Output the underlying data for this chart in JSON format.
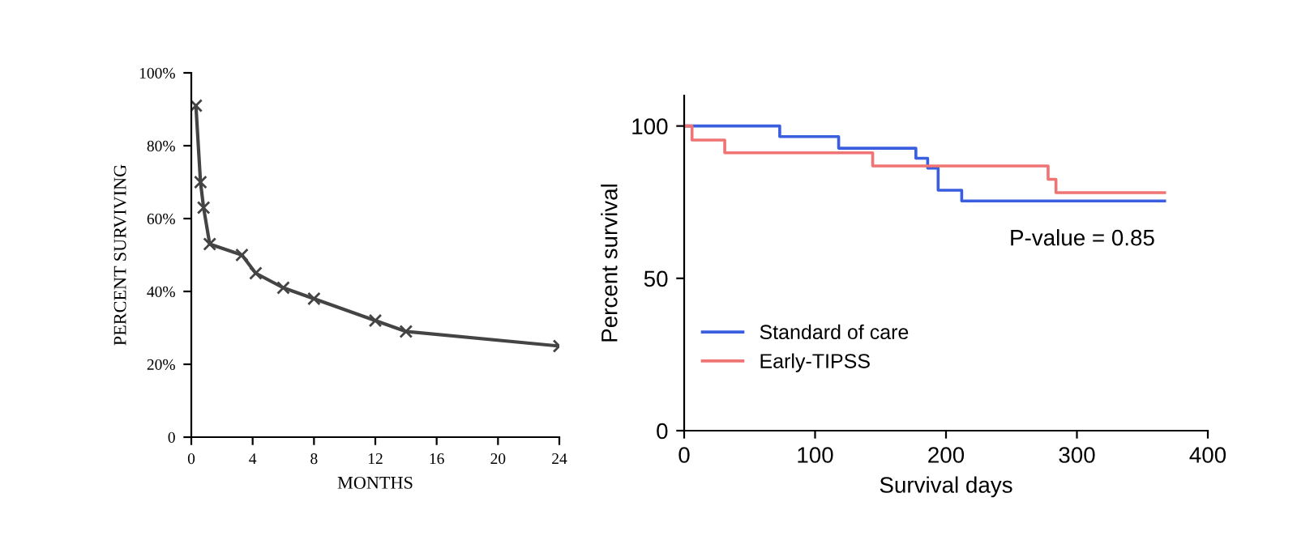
{
  "chart_data": [
    {
      "type": "line",
      "xlabel": "MONTHS",
      "ylabel": "PERCENT SURVIVING",
      "marker": "cross",
      "grid": false,
      "legend": false,
      "series": [
        {
          "color": "#444444",
          "x": [
            0.3,
            0.6,
            0.8,
            1.2,
            3.3,
            4.2,
            6,
            8,
            12,
            14,
            24
          ],
          "values": [
            91,
            70,
            63,
            53,
            50,
            45,
            41,
            38,
            32,
            29,
            25
          ]
        }
      ],
      "xlim": [
        0,
        24
      ],
      "xticks": [
        0,
        4,
        8,
        12,
        16,
        20,
        24
      ],
      "ylim": [
        0,
        100
      ],
      "yticks": [
        0,
        {
          "value": 20,
          "label": "20%"
        },
        {
          "value": 40,
          "label": "40%"
        },
        {
          "value": 60,
          "label": "60%"
        },
        {
          "value": 80,
          "label": "80%"
        },
        {
          "value": 100,
          "label": "100%"
        }
      ]
    },
    {
      "type": "step",
      "xlabel": "Survival days",
      "ylabel": "Percent survival",
      "grid": false,
      "legend": "bottom left",
      "marker": "none",
      "series": [
        {
          "name": "Standard of care",
          "color": "#3a5ee0",
          "x": [
            0,
            73,
            118,
            177,
            186,
            194,
            212,
            367
          ],
          "values": [
            100,
            96.5,
            92.7,
            89.4,
            86.2,
            78.9,
            75.4,
            75.4
          ]
        },
        {
          "name": "Early-TIPSS",
          "color": "#f07474",
          "x": [
            0,
            6,
            31,
            144,
            278,
            284,
            367
          ],
          "values": [
            100,
            95.4,
            91.2,
            86.9,
            82.5,
            78.1,
            78.1
          ]
        }
      ],
      "annotations": [
        "P-value = 0.85"
      ],
      "xlim": [
        0,
        400
      ],
      "xticks": [
        0,
        100,
        200,
        300,
        400
      ],
      "ylim": [
        0,
        110
      ],
      "yticks": [
        0,
        50,
        100
      ]
    }
  ]
}
